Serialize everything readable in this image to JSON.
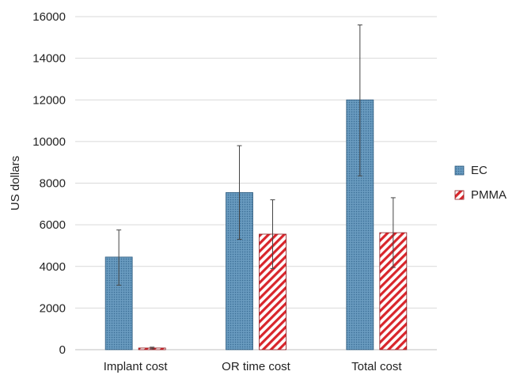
{
  "chart_data": {
    "type": "bar",
    "categories": [
      "Implant cost",
      "OR time cost",
      "Total cost"
    ],
    "ylabel": "US dollars",
    "ylim": [
      0,
      16000
    ],
    "yticks": [
      0,
      2000,
      4000,
      6000,
      8000,
      10000,
      12000,
      14000,
      16000
    ],
    "grid": true,
    "legend_position": "right",
    "series": [
      {
        "name": "EC",
        "values": [
          4450,
          7550,
          12000
        ],
        "error_low": [
          3100,
          5300,
          8350
        ],
        "error_high": [
          5750,
          9800,
          15600
        ],
        "color": "#5b8db3",
        "pattern": "dotted"
      },
      {
        "name": "PMMA",
        "values": [
          80,
          5550,
          5620
        ],
        "error_low": [
          40,
          3900,
          3950
        ],
        "error_high": [
          120,
          7200,
          7300
        ],
        "color": "#d9252b",
        "pattern": "diagonal-stripes"
      }
    ]
  }
}
